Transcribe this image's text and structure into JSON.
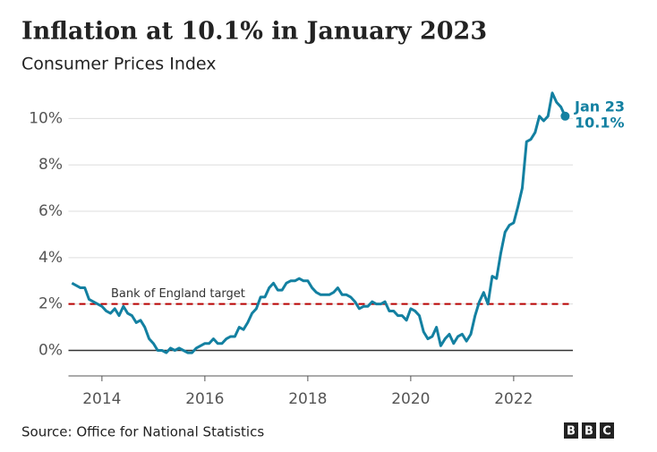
{
  "chart_data": {
    "type": "line",
    "title": "Inflation at 10.1% in January 2023",
    "subtitle": "Consumer Prices Index",
    "source": "Source: Office for National Statistics",
    "logo": "BBC",
    "reference_line": {
      "value": 2,
      "label": "Bank of England target",
      "color": "#b80000"
    },
    "annotations": [
      "Jan 23",
      "10.1%"
    ],
    "x": [
      2013.417,
      2013.5,
      2013.583,
      2013.667,
      2013.75,
      2013.833,
      2013.917,
      2014,
      2014.083,
      2014.167,
      2014.25,
      2014.333,
      2014.417,
      2014.5,
      2014.583,
      2014.667,
      2014.75,
      2014.833,
      2014.917,
      2015,
      2015.083,
      2015.167,
      2015.25,
      2015.333,
      2015.417,
      2015.5,
      2015.583,
      2015.667,
      2015.75,
      2015.833,
      2015.917,
      2016,
      2016.083,
      2016.167,
      2016.25,
      2016.333,
      2016.417,
      2016.5,
      2016.583,
      2016.667,
      2016.75,
      2016.833,
      2016.917,
      2017,
      2017.083,
      2017.167,
      2017.25,
      2017.333,
      2017.417,
      2017.5,
      2017.583,
      2017.667,
      2017.75,
      2017.833,
      2017.917,
      2018,
      2018.083,
      2018.167,
      2018.25,
      2018.333,
      2018.417,
      2018.5,
      2018.583,
      2018.667,
      2018.75,
      2018.833,
      2018.917,
      2019,
      2019.083,
      2019.167,
      2019.25,
      2019.333,
      2019.417,
      2019.5,
      2019.583,
      2019.667,
      2019.75,
      2019.833,
      2019.917,
      2020,
      2020.083,
      2020.167,
      2020.25,
      2020.333,
      2020.417,
      2020.5,
      2020.583,
      2020.667,
      2020.75,
      2020.833,
      2020.917,
      2021,
      2021.083,
      2021.167,
      2021.25,
      2021.333,
      2021.417,
      2021.5,
      2021.583,
      2021.667,
      2021.75,
      2021.833,
      2021.917,
      2022,
      2022.083,
      2022.167,
      2022.25,
      2022.333,
      2022.417,
      2022.5,
      2022.583,
      2022.667,
      2022.75,
      2022.833,
      2022.917,
      2023
    ],
    "series": [
      {
        "name": "CPI",
        "color": "#1380a1",
        "values": [
          2.9,
          2.8,
          2.7,
          2.7,
          2.2,
          2.1,
          2.0,
          1.9,
          1.7,
          1.6,
          1.8,
          1.5,
          1.9,
          1.6,
          1.5,
          1.2,
          1.3,
          1.0,
          0.5,
          0.3,
          0.0,
          0.0,
          -0.1,
          0.1,
          0.0,
          0.1,
          0.0,
          -0.1,
          -0.1,
          0.1,
          0.2,
          0.3,
          0.3,
          0.5,
          0.3,
          0.3,
          0.5,
          0.6,
          0.6,
          1.0,
          0.9,
          1.2,
          1.6,
          1.8,
          2.3,
          2.3,
          2.7,
          2.9,
          2.6,
          2.6,
          2.9,
          3.0,
          3.0,
          3.1,
          3.0,
          3.0,
          2.7,
          2.5,
          2.4,
          2.4,
          2.4,
          2.5,
          2.7,
          2.4,
          2.4,
          2.3,
          2.1,
          1.8,
          1.9,
          1.9,
          2.1,
          2.0,
          2.0,
          2.1,
          1.7,
          1.7,
          1.5,
          1.5,
          1.3,
          1.8,
          1.7,
          1.5,
          0.8,
          0.5,
          0.6,
          1.0,
          0.2,
          0.5,
          0.7,
          0.3,
          0.6,
          0.7,
          0.4,
          0.7,
          1.5,
          2.1,
          2.5,
          2.0,
          3.2,
          3.1,
          4.2,
          5.1,
          5.4,
          5.5,
          6.2,
          7.0,
          9.0,
          9.1,
          9.4,
          10.1,
          9.9,
          10.1,
          11.1,
          10.7,
          10.5,
          10.1
        ]
      }
    ],
    "xlim": [
      2013.35,
      2023.15
    ],
    "xticks": [
      2014,
      2016,
      2018,
      2020,
      2022
    ],
    "ylim": [
      -1.1,
      11.25
    ],
    "yticks": [
      {
        "value": 0,
        "label": "0%"
      },
      {
        "value": 2,
        "label": "2%"
      },
      {
        "value": 4,
        "label": "4%"
      },
      {
        "value": 6,
        "label": "6%"
      },
      {
        "value": 8,
        "label": "8%"
      },
      {
        "value": 10,
        "label": "10%"
      }
    ],
    "grid": true
  }
}
